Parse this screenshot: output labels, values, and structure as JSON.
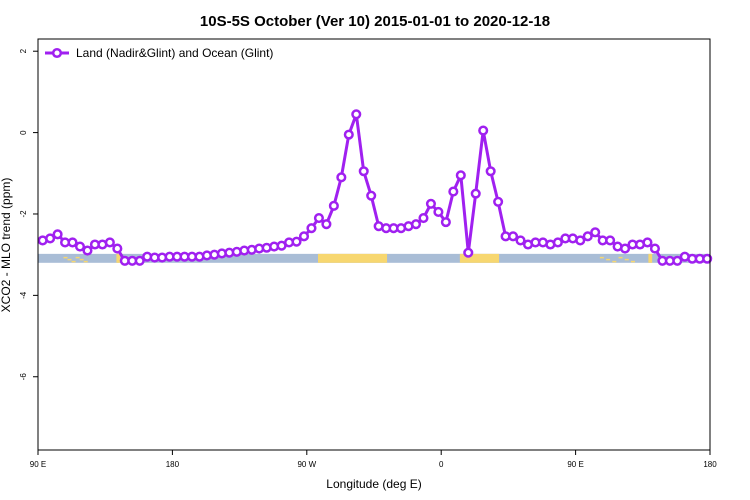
{
  "chart_data": {
    "type": "line",
    "title": "10S-5S October (Ver 10)   2015-01-01 to 2020-12-18",
    "xlabel": "Longitude (deg E)",
    "ylabel": "XCO2 - MLO trend (ppm)",
    "xlim": [
      0,
      360
    ],
    "ylim": [
      -7.8,
      2.3
    ],
    "x_ticks": [
      {
        "value": 0,
        "label": "90 E"
      },
      {
        "value": 72,
        "label": "180"
      },
      {
        "value": 144,
        "label": "90 W"
      },
      {
        "value": 216,
        "label": "0"
      },
      {
        "value": 288,
        "label": "90 E"
      },
      {
        "value": 360,
        "label": "180"
      }
    ],
    "y_ticks": [
      {
        "value": 2,
        "label": "2"
      },
      {
        "value": 0,
        "label": "0"
      },
      {
        "value": -2,
        "label": "-2"
      },
      {
        "value": -4,
        "label": "-4"
      },
      {
        "value": -6,
        "label": "-6"
      }
    ],
    "legend": {
      "position": "top-left"
    },
    "series": [
      {
        "name": "Land (Nadir&Glint) and Ocean (Glint)",
        "color": "#a020f0",
        "x": [
          2.5,
          6.5,
          10.5,
          14.5,
          18.5,
          22.5,
          26.5,
          30.5,
          34.5,
          38.5,
          42.5,
          46.5,
          50.5,
          54.5,
          58.5,
          62.5,
          66.5,
          70.5,
          74.5,
          78.5,
          82.5,
          86.5,
          90.5,
          94.5,
          98.5,
          102.5,
          106.5,
          110.5,
          114.5,
          118.5,
          122.5,
          126.5,
          130.5,
          134.5,
          138.5,
          142.5,
          146.5,
          150.5,
          154.5,
          158.5,
          162.5,
          166.5,
          170.5,
          174.5,
          178.5,
          182.5,
          186.5,
          190.5,
          194.5,
          198.5,
          202.5,
          206.5,
          210.5,
          214.5,
          218.5,
          222.5,
          226.5,
          230.5,
          234.5,
          238.5,
          242.5,
          246.5,
          250.5,
          254.5,
          258.5,
          262.5,
          266.5,
          270.5,
          274.5,
          278.5,
          282.5,
          286.5,
          290.5,
          294.5,
          298.5,
          302.5,
          306.5,
          310.5,
          314.5,
          318.5,
          322.5,
          326.5,
          330.5,
          334.5,
          338.5,
          342.5,
          346.5,
          350.5,
          354.5,
          358.5
        ],
        "values": [
          -2.65,
          -2.6,
          -2.5,
          -2.7,
          -2.7,
          -2.8,
          -2.9,
          -2.75,
          -2.75,
          -2.7,
          -2.85,
          -3.15,
          -3.15,
          -3.15,
          -3.05,
          -3.07,
          -3.07,
          -3.05,
          -3.05,
          -3.05,
          -3.05,
          -3.05,
          -3.02,
          -3.0,
          -2.97,
          -2.95,
          -2.93,
          -2.9,
          -2.88,
          -2.85,
          -2.83,
          -2.8,
          -2.78,
          -2.7,
          -2.68,
          -2.55,
          -2.35,
          -2.1,
          -2.25,
          -1.8,
          -1.1,
          -0.05,
          0.45,
          -0.95,
          -1.55,
          -2.3,
          -2.35,
          -2.35,
          -2.35,
          -2.3,
          -2.25,
          -2.1,
          -1.75,
          -1.95,
          -2.2,
          -1.45,
          -1.05,
          -2.95,
          -1.5,
          0.05,
          -0.95,
          -1.7,
          -2.55,
          -2.55,
          -2.65,
          -2.75,
          -2.7,
          -2.7,
          -2.75,
          -2.7,
          -2.6,
          -2.6,
          -2.65,
          -2.55,
          -2.45,
          -2.65,
          -2.65,
          -2.8,
          -2.85,
          -2.75,
          -2.75,
          -2.7,
          -2.85,
          -3.15,
          -3.15,
          -3.15,
          -3.05,
          -3.1,
          -3.1,
          -3.1
        ]
      }
    ],
    "surface_band": {
      "y_top": -2.98,
      "y_bottom": -3.2,
      "ocean_color": "#a9bdd6",
      "land_color": "#f7d770",
      "land_segments": [
        [
          42,
          44
        ],
        [
          150,
          187
        ],
        [
          226,
          247
        ],
        [
          327,
          329
        ]
      ],
      "island_specks": [
        [
          13,
          26
        ],
        [
          300,
          320
        ]
      ]
    }
  }
}
